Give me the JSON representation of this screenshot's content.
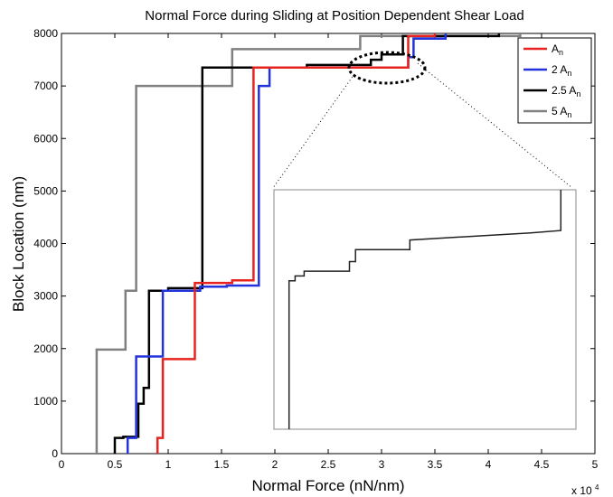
{
  "chart_data": {
    "type": "line",
    "title": "Normal Force during Sliding at Position Dependent Shear Load",
    "xlabel": "Normal Force (nN/nm)",
    "ylabel": "Block Location (nm)",
    "x_multiplier": "x 10",
    "x_multiplier_exp": "4",
    "xlim": [
      0,
      5
    ],
    "ylim": [
      0,
      8000
    ],
    "xticks": [
      "0",
      "0.5",
      "1",
      "1.5",
      "2",
      "2.5",
      "3",
      "3.5",
      "4",
      "4.5",
      "5"
    ],
    "yticks": [
      "0",
      "1000",
      "2000",
      "3000",
      "4000",
      "5000",
      "6000",
      "7000",
      "8000"
    ],
    "grid": false,
    "legend_position": "top-right",
    "series": [
      {
        "name": "A",
        "name_sub": "n",
        "color": "#e8231f",
        "points": [
          [
            0.9,
            0
          ],
          [
            0.9,
            300
          ],
          [
            0.95,
            300
          ],
          [
            0.95,
            1800
          ],
          [
            1.25,
            1800
          ],
          [
            1.25,
            3250
          ],
          [
            1.6,
            3250
          ],
          [
            1.6,
            3300
          ],
          [
            1.8,
            3300
          ],
          [
            1.8,
            7350
          ],
          [
            3.25,
            7350
          ],
          [
            3.25,
            7950
          ],
          [
            3.5,
            7950
          ],
          [
            3.5,
            8000
          ]
        ]
      },
      {
        "name": "2 A",
        "name_sub": "n",
        "color": "#2233dd",
        "points": [
          [
            0.62,
            0
          ],
          [
            0.62,
            300
          ],
          [
            0.7,
            300
          ],
          [
            0.7,
            1850
          ],
          [
            0.95,
            1850
          ],
          [
            0.95,
            3100
          ],
          [
            1.3,
            3100
          ],
          [
            1.3,
            3180
          ],
          [
            1.55,
            3180
          ],
          [
            1.55,
            3200
          ],
          [
            1.85,
            3200
          ],
          [
            1.85,
            7000
          ],
          [
            1.95,
            7000
          ],
          [
            1.95,
            7350
          ],
          [
            3.25,
            7350
          ],
          [
            3.25,
            7550
          ],
          [
            3.3,
            7550
          ],
          [
            3.3,
            7900
          ],
          [
            3.6,
            7900
          ],
          [
            3.6,
            8000
          ]
        ]
      },
      {
        "name": "2.5 A",
        "name_sub": "n",
        "color": "#000000",
        "points": [
          [
            0.5,
            0
          ],
          [
            0.5,
            300
          ],
          [
            0.58,
            300
          ],
          [
            0.58,
            320
          ],
          [
            0.72,
            320
          ],
          [
            0.72,
            950
          ],
          [
            0.77,
            950
          ],
          [
            0.77,
            1250
          ],
          [
            0.82,
            1250
          ],
          [
            0.82,
            3100
          ],
          [
            1.0,
            3100
          ],
          [
            1.0,
            3150
          ],
          [
            1.32,
            3150
          ],
          [
            1.32,
            7350
          ],
          [
            2.3,
            7350
          ],
          [
            2.3,
            7400
          ],
          [
            2.9,
            7400
          ],
          [
            2.9,
            7500
          ],
          [
            3.0,
            7500
          ],
          [
            3.0,
            7600
          ],
          [
            3.2,
            7600
          ],
          [
            3.2,
            7950
          ],
          [
            4.1,
            7950
          ],
          [
            4.1,
            8000
          ]
        ]
      },
      {
        "name": "5 A",
        "name_sub": "n",
        "color": "#808080",
        "points": [
          [
            0.33,
            0
          ],
          [
            0.33,
            1980
          ],
          [
            0.6,
            1980
          ],
          [
            0.6,
            3100
          ],
          [
            0.7,
            3100
          ],
          [
            0.7,
            7000
          ],
          [
            1.6,
            7000
          ],
          [
            1.6,
            7700
          ],
          [
            2.8,
            7700
          ],
          [
            2.8,
            7950
          ],
          [
            4.3,
            7950
          ],
          [
            4.3,
            8000
          ]
        ]
      }
    ],
    "inset": {
      "color": "#222222",
      "points": [
        [
          0.05,
          0
        ],
        [
          0.05,
          0.62
        ],
        [
          0.07,
          0.62
        ],
        [
          0.07,
          0.64
        ],
        [
          0.1,
          0.64
        ],
        [
          0.1,
          0.66
        ],
        [
          0.25,
          0.66
        ],
        [
          0.25,
          0.7
        ],
        [
          0.27,
          0.7
        ],
        [
          0.27,
          0.75
        ],
        [
          0.45,
          0.75
        ],
        [
          0.45,
          0.79
        ],
        [
          0.85,
          0.82
        ],
        [
          0.95,
          0.83
        ],
        [
          0.95,
          1.0
        ]
      ]
    }
  }
}
